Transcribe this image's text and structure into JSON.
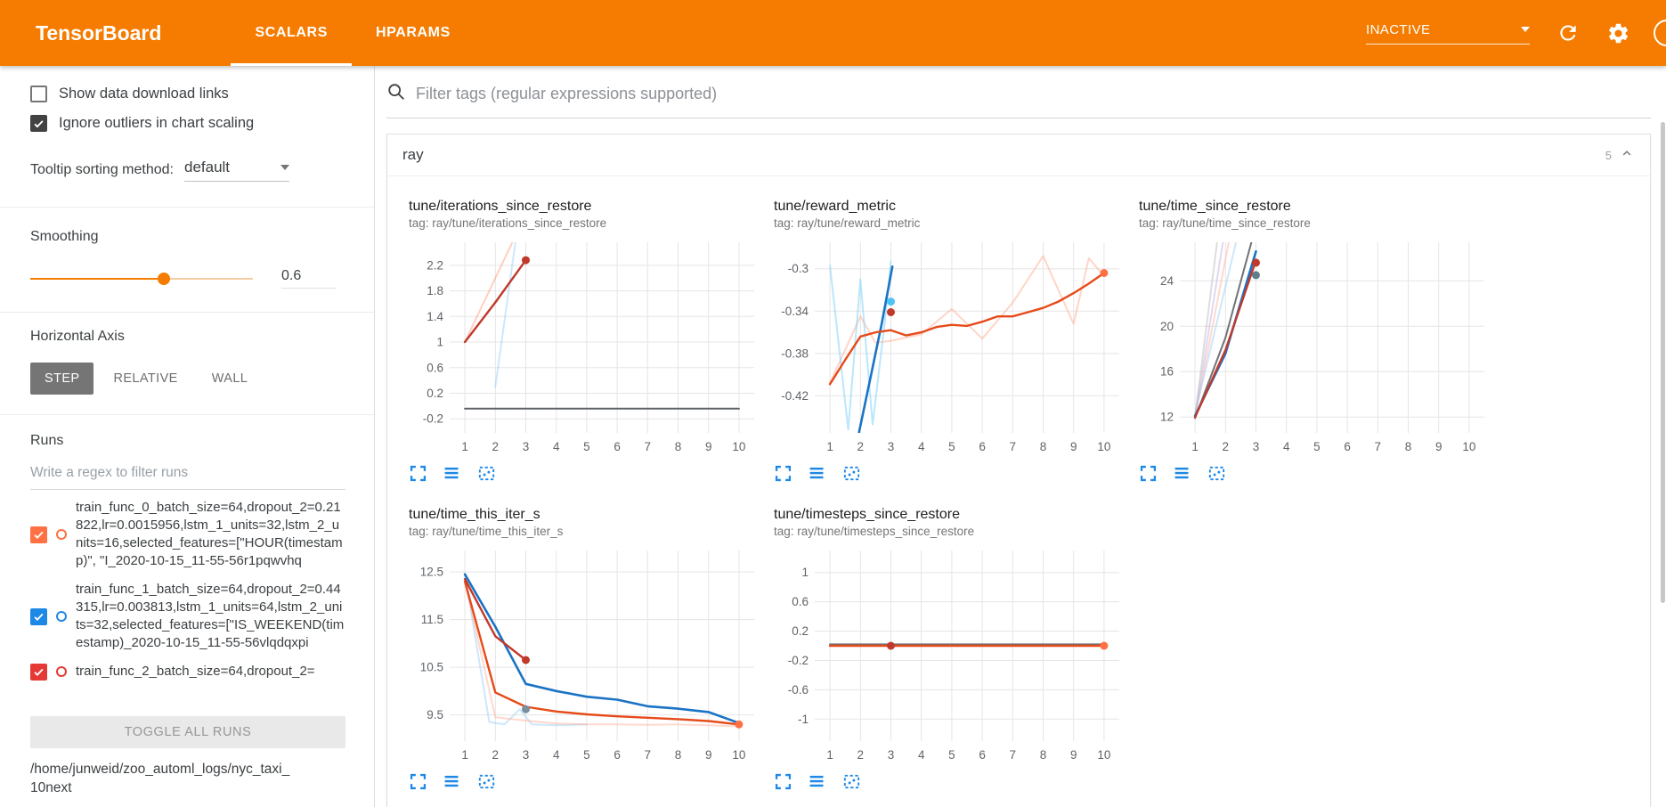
{
  "colors": {
    "header_bg": "#f57c00",
    "accent_orange": "#f57c00",
    "icon_blue": "#1e88e5",
    "run0_color": "#ff7043",
    "run1_color": "#1e88e5",
    "line_dark_red": "#c0392b",
    "line_orange": "#e64a19",
    "line_blue": "#1a73c4",
    "line_gray": "#5f6368"
  },
  "icons": {
    "search-icon": "magnifier",
    "refresh-icon": "circular arrow",
    "settings-icon": "gear",
    "help-icon": "circle (clipped at screen edge)",
    "chevron-down-icon": "▾",
    "chevron-up-icon": "∧",
    "expand-chart-icon": "fullscreen corner brackets",
    "run-selector-icon": "three horizontal bars",
    "fit-domain-icon": "dashed square with dots",
    "checkbox-check-icon": "✓"
  },
  "header": {
    "title": "TensorBoard",
    "tabs": [
      {
        "label": "SCALARS",
        "active": true
      },
      {
        "label": "HPARAMS",
        "active": false
      }
    ],
    "status": "INACTIVE"
  },
  "sidebar": {
    "show_download_label": "Show data download links",
    "ignore_outliers_label": "Ignore outliers in chart scaling",
    "tooltip_sorting_label": "Tooltip sorting method:",
    "tooltip_sorting_value": "default",
    "smoothing_label": "Smoothing",
    "smoothing_value": "0.6",
    "horizontal_axis_label": "Horizontal Axis",
    "axis_buttons": [
      "STEP",
      "RELATIVE",
      "WALL"
    ],
    "runs_label": "Runs",
    "runs_filter_placeholder": "Write a regex to filter runs",
    "runs": [
      {
        "label": "train_func_0_batch_size=64,dropout_2=0.21822,lr=0.0015956,lstm_1_units=32,lstm_2_units=16,selected_features=[\"HOUR(timestamp)\", \"I_2020-10-15_11-55-56r1pqwvhq",
        "color": "#ff7043",
        "checked": true
      },
      {
        "label": "train_func_1_batch_size=64,dropout_2=0.44315,lr=0.003813,lstm_1_units=64,lstm_2_units=32,selected_features=[\"IS_WEEKEND(timestamp)_2020-10-15_11-55-56vlqdqxpi",
        "color": "#1e88e5",
        "checked": true
      },
      {
        "label": "train_func_2_batch_size=64,dropout_2=",
        "color": "#e53935",
        "checked": true
      }
    ],
    "toggle_all_label": "TOGGLE ALL RUNS",
    "log_path": "/home/junweid/zoo_automl_logs/nyc_taxi_10next"
  },
  "main": {
    "filter_placeholder": "Filter tags (regular expressions supported)",
    "section_title": "ray",
    "section_count": "5"
  },
  "chart_data": [
    {
      "type": "line",
      "title": "tune/iterations_since_restore",
      "tag": "tag: ray/tune/iterations_since_restore",
      "xlim": [
        0.5,
        10.5
      ],
      "ylim": [
        -0.42,
        2.56
      ],
      "xticks": [
        1,
        2,
        3,
        4,
        5,
        6,
        7,
        8,
        9,
        10
      ],
      "yticks": [
        -0.2,
        0.2,
        0.6,
        1,
        1.4,
        1.8,
        2.2
      ],
      "series": [
        {
          "name": "train_func_1_raw",
          "color": "#90caf9",
          "opacity": 0.45,
          "width": 2,
          "points": [
            [
              2,
              0.3
            ],
            [
              2.7,
              2.7
            ]
          ]
        },
        {
          "name": "train_func_0_raw",
          "color": "#ff8a65",
          "opacity": 0.4,
          "width": 2,
          "points": [
            [
              1,
              1
            ],
            [
              2,
              2
            ],
            [
              3,
              3
            ]
          ]
        },
        {
          "name": "train_func_2",
          "color": "#5f6368",
          "opacity": 1,
          "width": 2,
          "points": [
            [
              1,
              -0.04
            ],
            [
              10,
              -0.04
            ]
          ]
        },
        {
          "name": "train_func_0",
          "color": "#c0392b",
          "opacity": 1,
          "width": 2.4,
          "points": [
            [
              1,
              1
            ],
            [
              2,
              1.62
            ],
            [
              3,
              2.28
            ]
          ]
        }
      ],
      "markers": [
        {
          "x": 3,
          "y": 2.28,
          "color": "#c0392b"
        }
      ]
    },
    {
      "type": "line",
      "title": "tune/reward_metric",
      "tag": "tag: ray/tune/reward_metric",
      "xlim": [
        0.5,
        10.5
      ],
      "ylim": [
        -0.455,
        -0.275
      ],
      "xticks": [
        1,
        2,
        3,
        4,
        5,
        6,
        7,
        8,
        9,
        10
      ],
      "yticks": [
        -0.42,
        -0.38,
        -0.34,
        -0.3
      ],
      "series": [
        {
          "name": "train_func_0_raw",
          "color": "#ffab91",
          "opacity": 0.5,
          "width": 2,
          "points": [
            [
              1,
              -0.408
            ],
            [
              2,
              -0.345
            ],
            [
              2.5,
              -0.37
            ],
            [
              3,
              -0.368
            ],
            [
              4,
              -0.362
            ],
            [
              5,
              -0.338
            ],
            [
              6,
              -0.366
            ],
            [
              7,
              -0.332
            ],
            [
              8,
              -0.288
            ],
            [
              9,
              -0.352
            ],
            [
              9.5,
              -0.29
            ],
            [
              10,
              -0.307
            ]
          ]
        },
        {
          "name": "train_func_1_raw",
          "color": "#81d4fa",
          "opacity": 0.55,
          "width": 2,
          "points": [
            [
              1,
              -0.297
            ],
            [
              1.6,
              -0.452
            ],
            [
              2,
              -0.31
            ],
            [
              2.4,
              -0.447
            ],
            [
              2.8,
              -0.35
            ],
            [
              3,
              -0.293
            ]
          ]
        },
        {
          "name": "train_func_1",
          "color": "#1a73c4",
          "opacity": 1,
          "width": 2.6,
          "points": [
            [
              1.95,
              -0.455
            ],
            [
              2.35,
              -0.4
            ],
            [
              2.7,
              -0.352
            ],
            [
              3.05,
              -0.298
            ]
          ]
        },
        {
          "name": "train_func_0",
          "color": "#e64a19",
          "opacity": 1,
          "width": 2.4,
          "points": [
            [
              1,
              -0.409
            ],
            [
              1.5,
              -0.386
            ],
            [
              2,
              -0.364
            ],
            [
              2.5,
              -0.36
            ],
            [
              3,
              -0.358
            ],
            [
              3.5,
              -0.363
            ],
            [
              4,
              -0.36
            ],
            [
              4.5,
              -0.355
            ],
            [
              5,
              -0.353
            ],
            [
              5.5,
              -0.354
            ],
            [
              6,
              -0.35
            ],
            [
              6.5,
              -0.345
            ],
            [
              7,
              -0.345
            ],
            [
              7.5,
              -0.341
            ],
            [
              8,
              -0.337
            ],
            [
              8.5,
              -0.331
            ],
            [
              9,
              -0.323
            ],
            [
              9.5,
              -0.314
            ],
            [
              10,
              -0.304
            ]
          ]
        }
      ],
      "markers": [
        {
          "x": 3,
          "y": -0.341,
          "color": "#c0392b"
        },
        {
          "x": 3,
          "y": -0.331,
          "color": "#4fc3f7"
        },
        {
          "x": 10,
          "y": -0.304,
          "color": "#ff7043"
        }
      ]
    },
    {
      "type": "line",
      "title": "tune/time_since_restore",
      "tag": "tag: ray/tune/time_since_restore",
      "xlim": [
        0.5,
        10.5
      ],
      "ylim": [
        10.6,
        27.4
      ],
      "xticks": [
        1,
        2,
        3,
        4,
        5,
        6,
        7,
        8,
        9,
        10
      ],
      "yticks": [
        12,
        16,
        20,
        24
      ],
      "series": [
        {
          "name": "raw_gray",
          "color": "#9e9e9e",
          "opacity": 0.35,
          "width": 2,
          "points": [
            [
              1,
              12
            ],
            [
              1.75,
              28
            ]
          ]
        },
        {
          "name": "raw_lavender",
          "color": "#b39ddb",
          "opacity": 0.4,
          "width": 2,
          "points": [
            [
              1,
              12
            ],
            [
              1.95,
              28
            ]
          ]
        },
        {
          "name": "raw_orange",
          "color": "#ffab91",
          "opacity": 0.45,
          "width": 2,
          "points": [
            [
              1,
              12
            ],
            [
              2.15,
              28
            ]
          ]
        },
        {
          "name": "raw_blue",
          "color": "#90caf9",
          "opacity": 0.45,
          "width": 2,
          "points": [
            [
              1,
              12.3
            ],
            [
              2.4,
              28
            ]
          ]
        },
        {
          "name": "train_func_2",
          "color": "#5f6368",
          "opacity": 0.9,
          "width": 2,
          "points": [
            [
              1,
              11.9
            ],
            [
              2,
              19
            ],
            [
              2.85,
              27.4
            ]
          ]
        },
        {
          "name": "train_func_1",
          "color": "#1a73c4",
          "opacity": 1,
          "width": 2.6,
          "points": [
            [
              1,
              12.1
            ],
            [
              2,
              17.6
            ],
            [
              3,
              26.6
            ]
          ]
        },
        {
          "name": "train_func_0",
          "color": "#c0392b",
          "opacity": 1,
          "width": 2.4,
          "points": [
            [
              1,
              12
            ],
            [
              2,
              17.9
            ],
            [
              3,
              25.8
            ]
          ]
        }
      ],
      "markers": [
        {
          "x": 3,
          "y": 25.6,
          "color": "#c0392b"
        },
        {
          "x": 3,
          "y": 24.5,
          "color": "#607d8b"
        }
      ]
    },
    {
      "type": "line",
      "title": "tune/time_this_iter_s",
      "tag": "tag: ray/tune/time_this_iter_s",
      "xlim": [
        0.5,
        10.5
      ],
      "ylim": [
        8.95,
        12.95
      ],
      "xticks": [
        1,
        2,
        3,
        4,
        5,
        6,
        7,
        8,
        9,
        10
      ],
      "yticks": [
        9.5,
        10.5,
        11.5,
        12.5
      ],
      "series": [
        {
          "name": "raw_blue",
          "color": "#90caf9",
          "opacity": 0.45,
          "width": 2,
          "points": [
            [
              1,
              12.45
            ],
            [
              1.8,
              9.35
            ],
            [
              2.3,
              9.3
            ],
            [
              2.8,
              9.62
            ],
            [
              3.2,
              9.3
            ],
            [
              4,
              9.28
            ],
            [
              5,
              9.3
            ]
          ]
        },
        {
          "name": "raw_orange",
          "color": "#ffab91",
          "opacity": 0.45,
          "width": 2,
          "points": [
            [
              1,
              12.3
            ],
            [
              2,
              9.45
            ],
            [
              3,
              9.38
            ],
            [
              4,
              9.32
            ],
            [
              5,
              9.3
            ],
            [
              6,
              9.3
            ],
            [
              7,
              9.29
            ],
            [
              8,
              9.3
            ],
            [
              9,
              9.28
            ],
            [
              10,
              9.26
            ]
          ]
        },
        {
          "name": "train_func_0_smoothed",
          "color": "#e64a19",
          "opacity": 1,
          "width": 2.4,
          "points": [
            [
              1,
              12.3
            ],
            [
              2,
              9.97
            ],
            [
              3,
              9.67
            ],
            [
              4,
              9.57
            ],
            [
              5,
              9.51
            ],
            [
              6,
              9.47
            ],
            [
              7,
              9.44
            ],
            [
              8,
              9.41
            ],
            [
              9,
              9.37
            ],
            [
              10,
              9.3
            ]
          ]
        },
        {
          "name": "train_func_1",
          "color": "#1a73c4",
          "opacity": 1,
          "width": 2.6,
          "points": [
            [
              1,
              12.45
            ],
            [
              2,
              11.35
            ],
            [
              3,
              10.15
            ],
            [
              4,
              10.0
            ],
            [
              5,
              9.88
            ],
            [
              6,
              9.82
            ],
            [
              7,
              9.68
            ],
            [
              8,
              9.63
            ],
            [
              9,
              9.56
            ],
            [
              10,
              9.33
            ]
          ]
        },
        {
          "name": "train_func_0",
          "color": "#c0392b",
          "opacity": 1,
          "width": 2.4,
          "points": [
            [
              1,
              12.35
            ],
            [
              2,
              11.15
            ],
            [
              3,
              10.65
            ]
          ]
        }
      ],
      "markers": [
        {
          "x": 3,
          "y": 10.65,
          "color": "#c0392b"
        },
        {
          "x": 3,
          "y": 9.62,
          "color": "#78909c"
        },
        {
          "x": 10,
          "y": 9.3,
          "color": "#ff7043"
        }
      ]
    },
    {
      "type": "line",
      "title": "tune/timesteps_since_restore",
      "tag": "tag: ray/tune/timesteps_since_restore",
      "xlim": [
        0.5,
        10.5
      ],
      "ylim": [
        -1.3,
        1.3
      ],
      "xticks": [
        1,
        2,
        3,
        4,
        5,
        6,
        7,
        8,
        9,
        10
      ],
      "yticks": [
        -1,
        -0.6,
        -0.2,
        0.2,
        0.6,
        1
      ],
      "series": [
        {
          "name": "train_func_2",
          "color": "#5f6368",
          "opacity": 0.9,
          "width": 2,
          "points": [
            [
              1,
              0.02
            ],
            [
              10,
              0.02
            ]
          ]
        },
        {
          "name": "train_func_0",
          "color": "#e64a19",
          "opacity": 1,
          "width": 2.4,
          "points": [
            [
              1,
              0
            ],
            [
              10,
              0
            ]
          ]
        }
      ],
      "markers": [
        {
          "x": 3,
          "y": 0,
          "color": "#c0392b"
        },
        {
          "x": 10,
          "y": 0,
          "color": "#ff7043"
        }
      ]
    }
  ]
}
